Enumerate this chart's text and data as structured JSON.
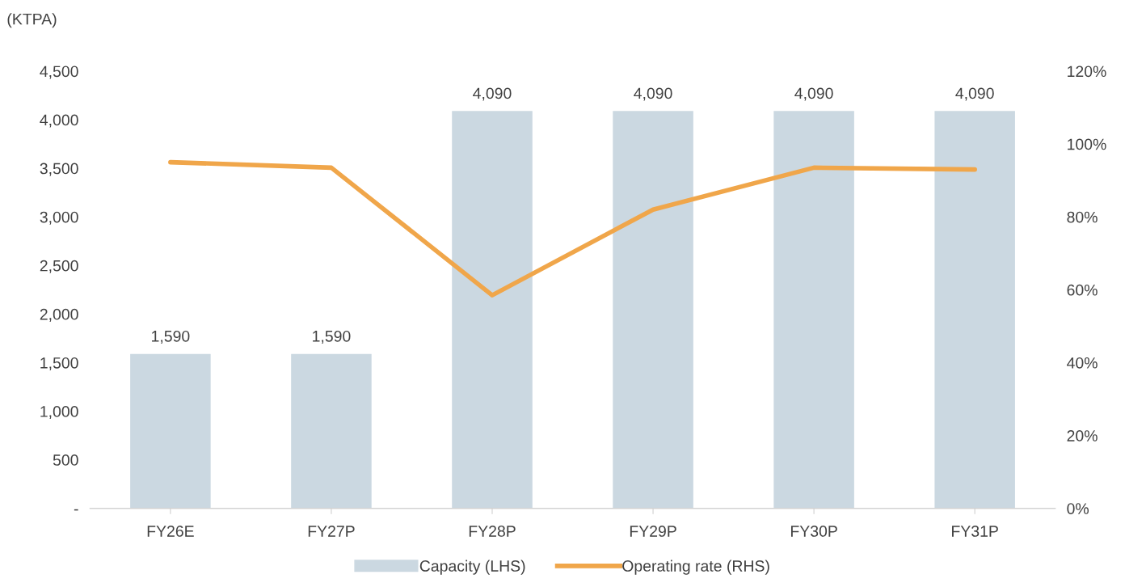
{
  "chart_data": {
    "type": "bar",
    "ylabel": "(KTPA)",
    "categories": [
      "FY26E",
      "FY27P",
      "FY28P",
      "FY29P",
      "FY30P",
      "FY31P"
    ],
    "series": [
      {
        "name": "Capacity (LHS)",
        "type": "bar",
        "color": "#cbd8e1",
        "values": [
          1590,
          1590,
          4090,
          4090,
          4090,
          4090
        ],
        "value_labels": [
          "1,590",
          "1,590",
          "4,090",
          "4,090",
          "4,090",
          "4,090"
        ]
      },
      {
        "name": "Operating rate (RHS)",
        "type": "line",
        "axis": "y2",
        "color": "#f0a64a",
        "values": [
          95,
          93.5,
          58.5,
          82,
          93.5,
          93
        ]
      }
    ],
    "ylim": [
      0,
      4500
    ],
    "yticks": [
      {
        "value": 0,
        "label": "-"
      },
      {
        "value": 500,
        "label": "500"
      },
      {
        "value": 1000,
        "label": "1,000"
      },
      {
        "value": 1500,
        "label": "1,500"
      },
      {
        "value": 2000,
        "label": "2,000"
      },
      {
        "value": 2500,
        "label": "2,500"
      },
      {
        "value": 3000,
        "label": "3,000"
      },
      {
        "value": 3500,
        "label": "3,500"
      },
      {
        "value": 4000,
        "label": "4,000"
      },
      {
        "value": 4500,
        "label": "4,500"
      }
    ],
    "y2lim": [
      0,
      120
    ],
    "y2ticks": [
      {
        "value": 0,
        "label": "0%"
      },
      {
        "value": 20,
        "label": "20%"
      },
      {
        "value": 40,
        "label": "40%"
      },
      {
        "value": 60,
        "label": "60%"
      },
      {
        "value": 80,
        "label": "80%"
      },
      {
        "value": 100,
        "label": "100%"
      },
      {
        "value": 120,
        "label": "120%"
      }
    ],
    "grid": false,
    "legend": "bottom",
    "line_style": "solid",
    "marker": "none"
  }
}
